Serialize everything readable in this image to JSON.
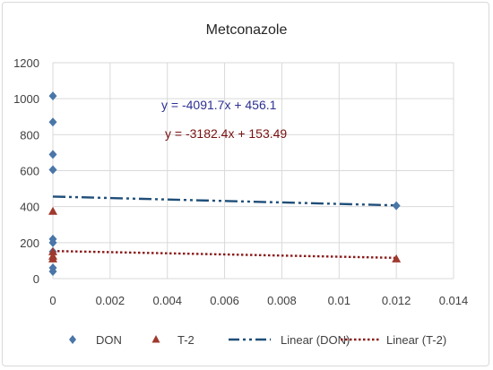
{
  "chart_data": {
    "type": "scatter",
    "title": "Metconazole",
    "xlim": [
      0,
      0.014
    ],
    "ylim": [
      0,
      1200
    ],
    "x_ticks": [
      "0",
      "0.002",
      "0.004",
      "0.006",
      "0.008",
      "0.01",
      "0.012",
      "0.014"
    ],
    "y_ticks": [
      "0",
      "200",
      "400",
      "600",
      "800",
      "1000",
      "1200"
    ],
    "grid": true,
    "legend_position": "bottom",
    "series": [
      {
        "name": "DON",
        "marker": "diamond",
        "color": "#4a76a8",
        "points": [
          {
            "x": 0,
            "y": 1015
          },
          {
            "x": 0,
            "y": 870
          },
          {
            "x": 0,
            "y": 690
          },
          {
            "x": 0,
            "y": 605
          },
          {
            "x": 0,
            "y": 220
          },
          {
            "x": 0,
            "y": 200
          },
          {
            "x": 0,
            "y": 150
          },
          {
            "x": 0,
            "y": 60
          },
          {
            "x": 0,
            "y": 40
          },
          {
            "x": 0.012,
            "y": 405
          }
        ]
      },
      {
        "name": "T-2",
        "marker": "triangle",
        "color": "#a0392e",
        "points": [
          {
            "x": 0,
            "y": 375
          },
          {
            "x": 0,
            "y": 150
          },
          {
            "x": 0,
            "y": 125
          },
          {
            "x": 0,
            "y": 110
          },
          {
            "x": 0.012,
            "y": 110
          }
        ]
      }
    ],
    "trendlines": [
      {
        "name": "Linear (DON)",
        "slope": -4091.7,
        "intercept": 456.1,
        "color": "#1f4e79",
        "style": "dash-dot-dot",
        "equation": "y = -4091.7x + 456.1",
        "equation_color": "#2e3192"
      },
      {
        "name": "Linear (T-2)",
        "slope": -3182.4,
        "intercept": 153.49,
        "color": "#8b1a1a",
        "style": "dotted",
        "equation": "y = -3182.4x + 153.49",
        "equation_color": "#7a1010"
      }
    ],
    "legend": [
      "DON",
      "T-2",
      "Linear (DON)",
      "Linear (T-2)"
    ]
  }
}
